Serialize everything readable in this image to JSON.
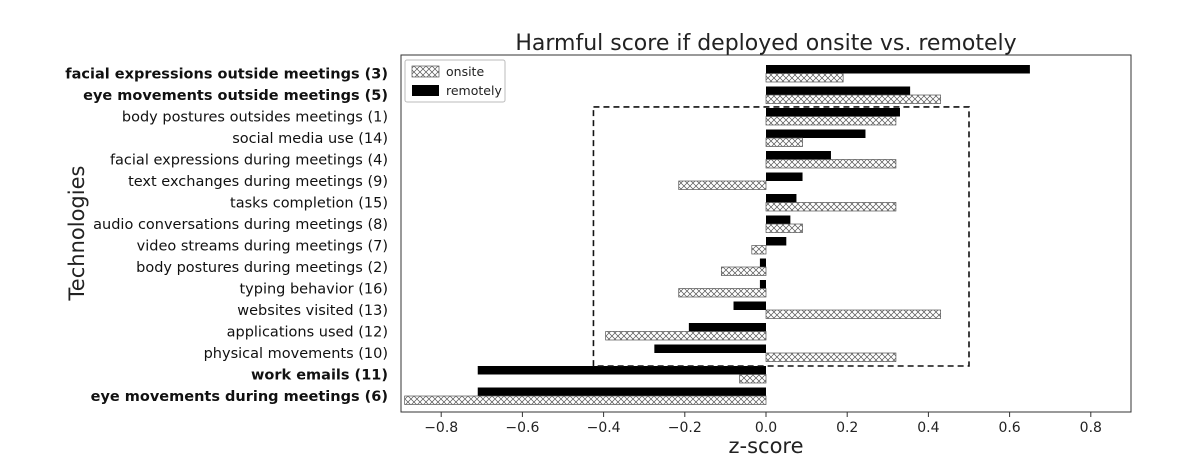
{
  "chart_data": {
    "type": "bar",
    "orientation": "horizontal",
    "title": "Harmful score if deployed onsite vs. remotely",
    "xlabel": "z-score",
    "ylabel": "Technologies",
    "xlim": [
      -0.88,
      0.88
    ],
    "xticks": [
      -0.8,
      -0.6,
      -0.4,
      -0.2,
      0.0,
      0.2,
      0.4,
      0.6,
      0.8
    ],
    "xtick_labels": [
      "−0.8",
      "−0.6",
      "−0.4",
      "−0.2",
      "0.0",
      "0.2",
      "0.4",
      "0.6",
      "0.8"
    ],
    "legend": {
      "placement": "top-left",
      "entries": [
        "onsite",
        "remotely"
      ]
    },
    "categories": [
      "facial expressions outside meetings (3)",
      "eye movements outside meetings (5)",
      "body postures outsides meetings (1)",
      "social media use (14)",
      "facial expressions during meetings (4)",
      "text exchanges during meetings (9)",
      "tasks completion (15)",
      "audio conversations during meetings (8)",
      "video streams during meetings (7)",
      "body postures during meetings (2)",
      "typing behavior (16)",
      "websites visited (13)",
      "applications used (12)",
      "physical movements (10)",
      "work emails (11)",
      "eye movements during meetings (6)"
    ],
    "bold_categories": [
      "facial expressions outside meetings (3)",
      "eye movements outside meetings (5)",
      "work emails (11)",
      "eye movements during meetings (6)"
    ],
    "series": [
      {
        "name": "remotely",
        "style": "solid-black",
        "values": [
          0.65,
          0.355,
          0.33,
          0.245,
          0.16,
          0.09,
          0.075,
          0.06,
          0.05,
          -0.015,
          -0.015,
          -0.08,
          -0.19,
          -0.275,
          -0.71,
          -0.71
        ]
      },
      {
        "name": "onsite",
        "style": "crosshatch",
        "values": [
          0.19,
          0.43,
          0.32,
          0.09,
          0.32,
          -0.215,
          0.32,
          0.09,
          -0.035,
          -0.11,
          -0.215,
          0.43,
          -0.395,
          0.32,
          -0.065,
          -0.89
        ]
      }
    ],
    "highlight_box": {
      "style": "dashed",
      "x_range": [
        -0.425,
        0.5
      ],
      "categories_from": "body postures outsides meetings (1)",
      "categories_to": "physical movements (10)"
    }
  }
}
